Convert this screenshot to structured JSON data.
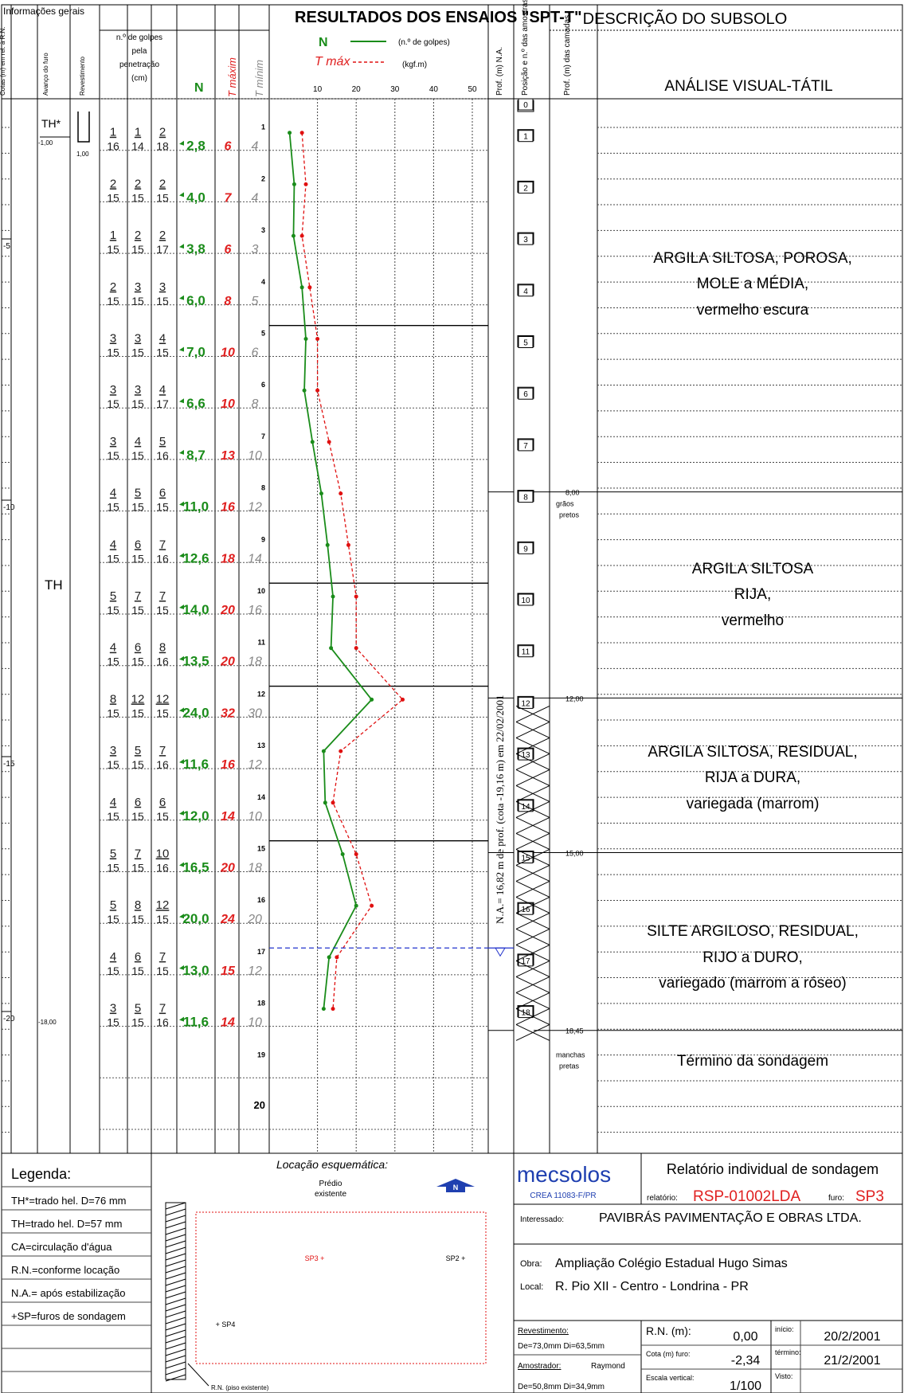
{
  "colors": {
    "n_curve": "#1a8c1a",
    "t_curve": "#e01010",
    "water": "#2233cc",
    "grid": "#000000",
    "brand": "#1f3fb0",
    "text_red": "#e02020"
  },
  "header": {
    "info_title": "Informações gerais",
    "info_cols": [
      "Cotas (m) em rel. à R.N.",
      "Avanço do furo",
      "Revestimento"
    ],
    "results_title": "RESULTADOS DOS ENSAIOS \"SPT-T\"",
    "golpes_label": [
      "n.º de golpes",
      "pela",
      "penetração",
      "(cm)"
    ],
    "n_label": "N",
    "tmax_label": "T máxim",
    "tmin_label": "T mínim",
    "legend_n": "N",
    "legend_n_desc": "(n.º de golpes)",
    "legend_t": "T máx",
    "legend_t_desc": "(kgf.m)",
    "axis_ticks": [
      "10",
      "20",
      "30",
      "40",
      "50"
    ],
    "prof_na": "Prof. (m) N.A.",
    "posicao": "Posição e n.º das amostras",
    "prof_camadas": "Prof. (m) das camadas",
    "desc_title": "DESCRIÇÃO DO SUBSOLO",
    "desc_sub": "ANÁLISE VISUAL-TÁTIL"
  },
  "info": {
    "th_star": "TH*",
    "th": "TH",
    "depth_start": "-1,00",
    "rev_depth": "1,00",
    "depth_end": "-18,00",
    "cota_marks": [
      "-5",
      "-10",
      "-15",
      "-20"
    ]
  },
  "chart_data": {
    "type": "line",
    "x_label_n": "N (n.º de golpes)",
    "x_label_t": "T máx (kgf.m)",
    "x_ticks": [
      10,
      20,
      30,
      40,
      50
    ],
    "depth": [
      1,
      2,
      3,
      4,
      5,
      6,
      7,
      8,
      9,
      10,
      11,
      12,
      13,
      14,
      15,
      16,
      17,
      18
    ],
    "series": [
      {
        "name": "N",
        "values": [
          2.8,
          4.0,
          3.8,
          6.0,
          7.0,
          6.6,
          8.7,
          11.0,
          12.6,
          14.0,
          13.5,
          24.0,
          11.6,
          12.0,
          16.5,
          20.0,
          13.0,
          11.6
        ]
      },
      {
        "name": "T máx",
        "values": [
          6,
          7,
          6,
          8,
          10,
          10,
          13,
          16,
          18,
          20,
          20,
          32,
          16,
          14,
          20,
          24,
          15,
          14
        ]
      }
    ]
  },
  "samples": [
    {
      "n": "1",
      "g": [
        "1",
        "1",
        "2"
      ],
      "p": [
        "16",
        "14",
        "18"
      ],
      "N": "2,8",
      "tmax": "6",
      "tmin": "4"
    },
    {
      "n": "2",
      "g": [
        "2",
        "2",
        "2"
      ],
      "p": [
        "15",
        "15",
        "15"
      ],
      "N": "4,0",
      "tmax": "7",
      "tmin": "4"
    },
    {
      "n": "3",
      "g": [
        "1",
        "2",
        "2"
      ],
      "p": [
        "15",
        "15",
        "17"
      ],
      "N": "3,8",
      "tmax": "6",
      "tmin": "3"
    },
    {
      "n": "4",
      "g": [
        "2",
        "3",
        "3"
      ],
      "p": [
        "15",
        "15",
        "15"
      ],
      "N": "6,0",
      "tmax": "8",
      "tmin": "5"
    },
    {
      "n": "5",
      "g": [
        "3",
        "3",
        "4"
      ],
      "p": [
        "15",
        "15",
        "15"
      ],
      "N": "7,0",
      "tmax": "10",
      "tmin": "6"
    },
    {
      "n": "6",
      "g": [
        "3",
        "3",
        "4"
      ],
      "p": [
        "15",
        "15",
        "17"
      ],
      "N": "6,6",
      "tmax": "10",
      "tmin": "8"
    },
    {
      "n": "7",
      "g": [
        "3",
        "4",
        "5"
      ],
      "p": [
        "15",
        "15",
        "16"
      ],
      "N": "8,7",
      "tmax": "13",
      "tmin": "10"
    },
    {
      "n": "8",
      "g": [
        "4",
        "5",
        "6"
      ],
      "p": [
        "15",
        "15",
        "15"
      ],
      "N": "11,0",
      "tmax": "16",
      "tmin": "12"
    },
    {
      "n": "9",
      "g": [
        "4",
        "6",
        "7"
      ],
      "p": [
        "15",
        "15",
        "16"
      ],
      "N": "12,6",
      "tmax": "18",
      "tmin": "14"
    },
    {
      "n": "10",
      "g": [
        "5",
        "7",
        "7"
      ],
      "p": [
        "15",
        "15",
        "15"
      ],
      "N": "14,0",
      "tmax": "20",
      "tmin": "16"
    },
    {
      "n": "11",
      "g": [
        "4",
        "6",
        "8"
      ],
      "p": [
        "15",
        "15",
        "16"
      ],
      "N": "13,5",
      "tmax": "20",
      "tmin": "18"
    },
    {
      "n": "12",
      "g": [
        "8",
        "12",
        "12"
      ],
      "p": [
        "15",
        "15",
        "15"
      ],
      "N": "24,0",
      "tmax": "32",
      "tmin": "30"
    },
    {
      "n": "13",
      "g": [
        "3",
        "5",
        "7"
      ],
      "p": [
        "15",
        "15",
        "16"
      ],
      "N": "11,6",
      "tmax": "16",
      "tmin": "12"
    },
    {
      "n": "14",
      "g": [
        "4",
        "6",
        "6"
      ],
      "p": [
        "15",
        "15",
        "15"
      ],
      "N": "12,0",
      "tmax": "14",
      "tmin": "10"
    },
    {
      "n": "15",
      "g": [
        "5",
        "7",
        "10"
      ],
      "p": [
        "15",
        "15",
        "16"
      ],
      "N": "16,5",
      "tmax": "20",
      "tmin": "18"
    },
    {
      "n": "16",
      "g": [
        "5",
        "8",
        "12"
      ],
      "p": [
        "15",
        "15",
        "15"
      ],
      "N": "20,0",
      "tmax": "24",
      "tmin": "20"
    },
    {
      "n": "17",
      "g": [
        "4",
        "6",
        "7"
      ],
      "p": [
        "15",
        "15",
        "15"
      ],
      "N": "13,0",
      "tmax": "15",
      "tmin": "12"
    },
    {
      "n": "18",
      "g": [
        "3",
        "5",
        "7"
      ],
      "p": [
        "15",
        "15",
        "16"
      ],
      "N": "11,6",
      "tmax": "14",
      "tmin": "10"
    }
  ],
  "depth_axis": [
    "1",
    "2",
    "3",
    "4",
    "5",
    "6",
    "7",
    "8",
    "9",
    "10",
    "11",
    "12",
    "13",
    "14",
    "15",
    "16",
    "17",
    "18",
    "19",
    "20"
  ],
  "na": {
    "text": "N.A.= 16,82 m de prof. (cota -19,16 m) em 22/02/2001",
    "depth": 16.82
  },
  "layers": [
    {
      "lines": [
        "ARGILA SILTOSA, POROSA,",
        "MOLE a MÉDIA,",
        "vermelho escura"
      ],
      "bottom": "8,00",
      "note": [
        "grãos",
        "pretos"
      ]
    },
    {
      "lines": [
        "ARGILA SILTOSA",
        "RIJA,",
        "vermelho"
      ],
      "bottom": "12,00"
    },
    {
      "lines": [
        "ARGILA SILTOSA, RESIDUAL,",
        "RIJA a DURA,",
        "variegada (marrom)"
      ],
      "bottom": "15,00"
    },
    {
      "lines": [
        "SILTE ARGILOSO, RESIDUAL,",
        "RIJO a DURO,",
        "variegado (marrom a róseo)"
      ],
      "bottom": "18,45",
      "note": [
        "manchas",
        "pretas"
      ]
    },
    {
      "lines": [
        "Término da sondagem"
      ]
    }
  ],
  "legend": {
    "title": "Legenda:",
    "items": [
      "TH*=trado hel. D=76 mm",
      "TH=trado hel. D=57 mm",
      "CA=circulação d'água",
      "R.N.=conforme locação",
      "N.A.= após estabilização",
      "+SP=furos de sondagem"
    ]
  },
  "location": {
    "title": "Locação esquemática:",
    "building": [
      "Prédio",
      "existente"
    ],
    "north": "N",
    "holes": [
      "SP3 +",
      "SP2 +",
      "+ SP4"
    ],
    "rn_note": "R.N. (piso existente)"
  },
  "footer": {
    "brand": "mecsolos",
    "crea": "CREA 11083-F/PR",
    "report_title": "Relatório individual de sondagem",
    "relatorio_label": "relatório:",
    "relatorio": "RSP-01002LDA",
    "furo_label": "furo:",
    "furo": "SP3",
    "interessado_label": "Interessado:",
    "interessado": "PAVIBRÁS PAVIMENTAÇÃO E OBRAS LTDA.",
    "obra_label": "Obra:",
    "obra": "Ampliação Colégio Estadual Hugo Simas",
    "local_label": "Local:",
    "local": "R. Pio XII - Centro - Londrina - PR",
    "revestimento_label": "Revestimento:",
    "revestimento": "De=73,0mm  Di=63,5mm",
    "amostrador_label": "Amostrador:",
    "amostrador": "Raymond",
    "amostrador_dim": "De=50,8mm  Di=34,9mm",
    "rn_label": "R.N. (m):",
    "rn": "0,00",
    "cota_label": "Cota (m) furo:",
    "cota": "-2,34",
    "escala_label": "Escala vertical:",
    "escala": "1/100",
    "inicio_label": "início:",
    "inicio": "20/2/2001",
    "termino_label": "término:",
    "termino": "21/2/2001",
    "visto_label": "Visto:"
  }
}
